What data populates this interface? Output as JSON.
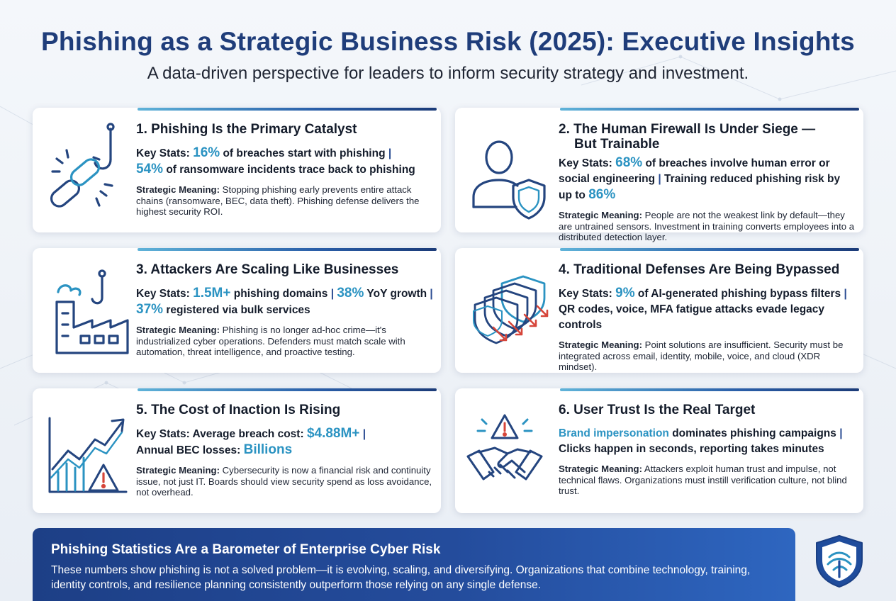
{
  "header": {
    "title": "Phishing as a Strategic Business Risk (2025): Executive Insights",
    "subtitle": "A data-driven perspective for leaders to inform security strategy and investment."
  },
  "cards": [
    {
      "title": "1. Phishing Is the Primary Catalyst",
      "icon": "chain-hook-icon",
      "stats_label": "Key Stats:",
      "stats": [
        {
          "value": "16%",
          "text": " of breaches start with phishing "
        },
        {
          "value": "54%",
          "text": " of ransomware incidents trace back to phishing"
        }
      ],
      "meaning_label": "Strategic Meaning:",
      "meaning": " Stopping phishing early prevents entire attack chains (ransomware, BEC, data theft). Phishing defense delivers the highest security ROI."
    },
    {
      "title_line1": "2. The Human Firewall Is Under Siege —",
      "title_line2": "But Trainable",
      "icon": "user-shield-icon",
      "stats_label": "Key Stats:",
      "stats": [
        {
          "value": "68%",
          "text": " of breaches involve human error or social engineering "
        },
        {
          "text": " Training reduced phishing risk by up to ",
          "value": "86%"
        }
      ],
      "meaning_label": "Strategic Meaning:",
      "meaning": " People are not the weakest link by default—they are untrained sensors. Investment in training converts employees into a distributed detection layer."
    },
    {
      "title": "3. Attackers Are Scaling Like Businesses",
      "icon": "factory-hook-icon",
      "stats_label": "Key Stats:",
      "stats": [
        {
          "value": "1.5M+",
          "text": " phishing domains "
        },
        {
          "value": "38%",
          "text": " YoY growth "
        },
        {
          "value": "37%",
          "text": " registered via bulk services"
        }
      ],
      "meaning_label": "Strategic Meaning:",
      "meaning": " Phishing is no longer ad-hoc crime—it's industrialized cyber operations. Defenders must match scale with automation, threat intelligence, and proactive testing."
    },
    {
      "title": "4. Traditional Defenses Are Being Bypassed",
      "icon": "layered-shields-icon",
      "stats_label": "Key Stats:",
      "stats": [
        {
          "value": "9%",
          "text": " of AI-generated phishing bypass filters "
        },
        {
          "text": "QR codes, voice, MFA fatigue attacks evade legacy controls"
        }
      ],
      "meaning_label": "Strategic Meaning:",
      "meaning": " Point solutions are insufficient. Security must be integrated across email, identity, mobile, voice, and cloud (XDR mindset)."
    },
    {
      "title": "5. The Cost of Inaction Is Rising",
      "icon": "rising-chart-warning-icon",
      "stats_label": "Key Stats:",
      "stats": [
        {
          "text": " Average breach cost: ",
          "value": "$4.88M+"
        },
        {
          "text": "Annual BEC losses: ",
          "value": "Billions"
        }
      ],
      "meaning_label": "Strategic Meaning:",
      "meaning": " Cybersecurity is now a financial risk and continuity issue, not just IT. Boards should view security spend as loss avoidance, not overhead."
    },
    {
      "title": "6. User Trust Is the Real Target",
      "icon": "handshake-warning-icon",
      "stats": [
        {
          "value": "Brand impersonation",
          "text": " dominates phishing campaigns "
        },
        {
          "text": "Clicks happen in seconds, reporting takes minutes"
        }
      ],
      "meaning_label": "Strategic Meaning:",
      "meaning": " Attackers exploit human trust and impulse, not technical flaws. Organizations must instill verification culture, not blind trust."
    }
  ],
  "separator": "|",
  "banner": {
    "title": "Phishing Statistics Are a Barometer of Enterprise Cyber Risk",
    "text": "These numbers show phishing is not a solved problem—it is evolving, scaling, and diversifying. Organizations that combine technology, training, identity controls, and resilience planning consistently outperform those relying on any single defense.",
    "icon": "shield-emblem-icon"
  },
  "colors": {
    "title": "#1f3d7a",
    "accent": "#2b93c2",
    "icon": "#24457f",
    "banner": "#244c9c"
  }
}
